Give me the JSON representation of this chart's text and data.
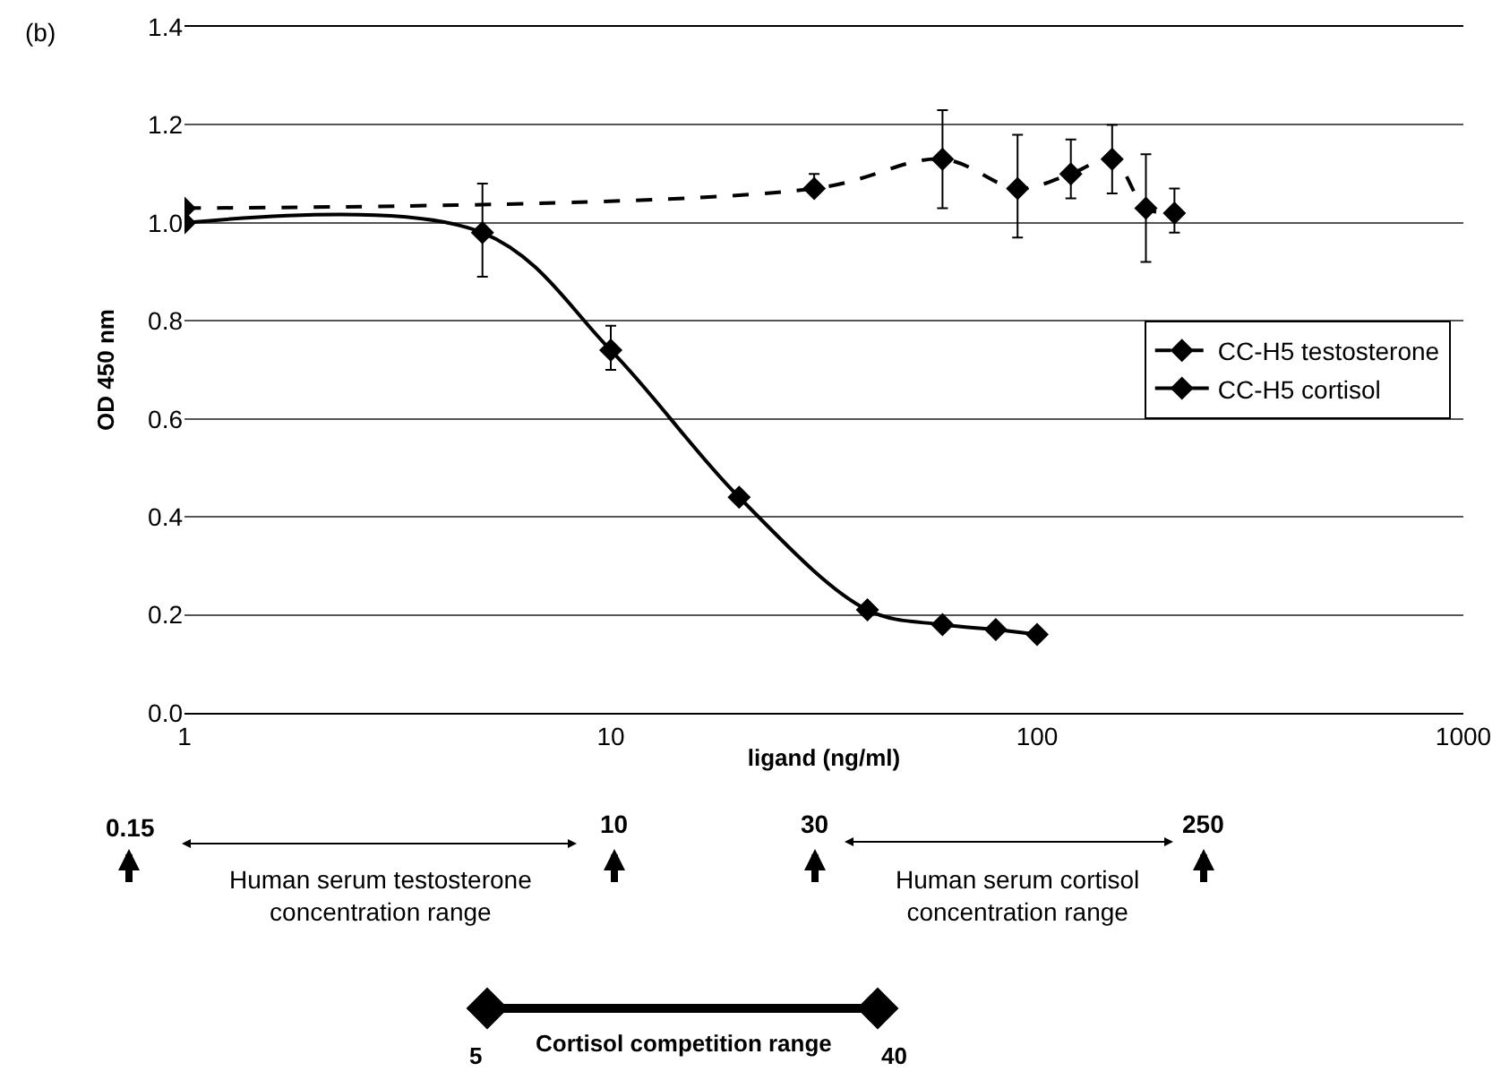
{
  "chart_data": {
    "type": "line",
    "xlabel": "ligand (ng/ml)",
    "ylabel": "OD 450 nm",
    "log": "x",
    "xlim": [
      1,
      1000
    ],
    "xticks": [
      1,
      10,
      100,
      1000
    ],
    "ylim": [
      0,
      1.4
    ],
    "yticks": [
      {
        "value": 0,
        "label": "0.0"
      },
      0.2,
      0.4,
      0.6,
      0.8,
      {
        "value": 1,
        "label": "1.0"
      },
      1.2,
      1.4
    ],
    "grid": "y",
    "legend": "right",
    "marker": "diamond",
    "series": [
      {
        "name": "CC-H5 testosterone",
        "color": "#000000",
        "line_style": "dashed",
        "x": [
          1,
          30,
          60,
          90,
          120,
          150,
          180,
          210
        ],
        "values": [
          1.03,
          1.07,
          1.13,
          1.07,
          1.1,
          1.13,
          1.03,
          1.02
        ],
        "errors": [
          null,
          [
            1.06,
            1.1
          ],
          [
            1.03,
            1.23
          ],
          [
            0.97,
            1.18
          ],
          [
            1.05,
            1.17
          ],
          [
            1.06,
            1.2
          ],
          [
            0.92,
            1.14
          ],
          [
            0.98,
            1.07
          ]
        ]
      },
      {
        "name": "CC-H5 cortisol",
        "color": "#000000",
        "line_style": "solid",
        "x": [
          1,
          5,
          10,
          20,
          40,
          60,
          80,
          100
        ],
        "values": [
          1.0,
          0.98,
          0.74,
          0.44,
          0.21,
          0.18,
          0.17,
          0.16
        ],
        "errors": [
          null,
          [
            0.89,
            1.08
          ],
          [
            0.7,
            0.79
          ],
          null,
          null,
          null,
          null,
          null
        ]
      }
    ],
    "annotations": [
      "(b)",
      "0.15",
      "10",
      "30",
      "250",
      "Human serum testosterone\nconcentration range",
      "Human serum cortisol\nconcentration range",
      "Cortisol competition range",
      "5",
      "40"
    ]
  }
}
